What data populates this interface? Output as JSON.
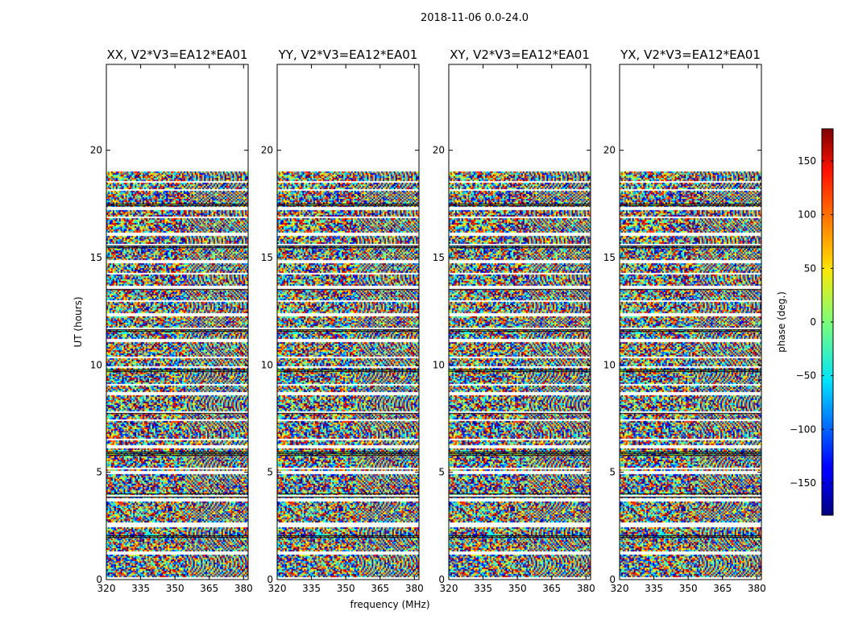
{
  "chart_data": {
    "type": "heatmap",
    "title": "2018-11-06 0.0-24.0",
    "xlabel": "frequency (MHz)",
    "ylabel": "UT (hours)",
    "xlim": [
      320,
      382
    ],
    "ylim": [
      0,
      24
    ],
    "xticks": [
      "320",
      "335",
      "350",
      "365",
      "380"
    ],
    "xtick_values": [
      320,
      335,
      350,
      365,
      380
    ],
    "yticks": [
      "0",
      "5",
      "10",
      "15",
      "20"
    ],
    "ytick_values": [
      0,
      5,
      10,
      15,
      20
    ],
    "panels": [
      {
        "title": "XX, V2*V3=EA12*EA01",
        "pol": "XX"
      },
      {
        "title": "YY, V2*V3=EA12*EA01",
        "pol": "YY"
      },
      {
        "title": "XY, V2*V3=EA12*EA01",
        "pol": "XY"
      },
      {
        "title": "YX, V2*V3=EA12*EA01",
        "pol": "YX"
      }
    ],
    "data_extent_hours": [
      0,
      19
    ],
    "colorbar": {
      "label": "phase (deg.)",
      "range": [
        -180,
        180
      ],
      "ticks": [
        "150",
        "100",
        "50",
        "0",
        "−50",
        "−100",
        "−150"
      ],
      "tick_values": [
        150,
        100,
        50,
        0,
        -50,
        -100,
        -150
      ],
      "colormap": "jet"
    },
    "colors": {
      "background": "#ffffff",
      "gap": "#ffffff",
      "axes": "#000000"
    }
  }
}
